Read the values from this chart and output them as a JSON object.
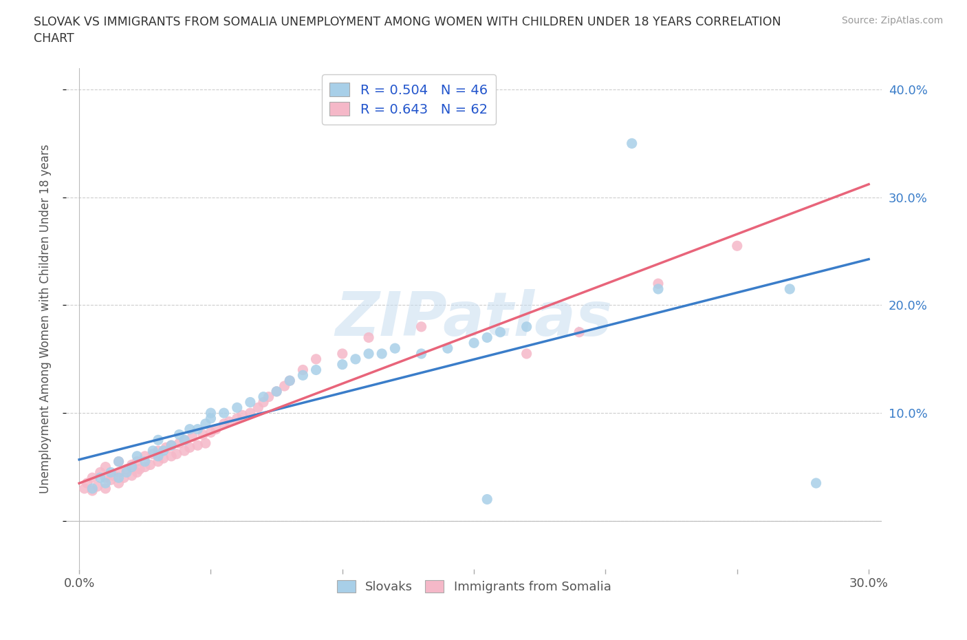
{
  "title": "SLOVAK VS IMMIGRANTS FROM SOMALIA UNEMPLOYMENT AMONG WOMEN WITH CHILDREN UNDER 18 YEARS CORRELATION\nCHART",
  "source": "Source: ZipAtlas.com",
  "ylabel": "Unemployment Among Women with Children Under 18 years",
  "xlim": [
    -0.005,
    0.305
  ],
  "ylim": [
    -0.045,
    0.42
  ],
  "plot_xlim": [
    0.0,
    0.3
  ],
  "plot_ylim": [
    0.0,
    0.4
  ],
  "xticks": [
    0.0,
    0.05,
    0.1,
    0.15,
    0.2,
    0.25,
    0.3
  ],
  "xtick_labels": [
    "0.0%",
    "",
    "",
    "",
    "",
    "",
    "30.0%"
  ],
  "yticks": [
    0.0,
    0.1,
    0.2,
    0.3,
    0.4
  ],
  "ytick_labels_right": [
    "",
    "10.0%",
    "20.0%",
    "30.0%",
    "40.0%"
  ],
  "watermark": "ZIPatlas",
  "slovak_color": "#a8cfe8",
  "somalia_color": "#f5b8c8",
  "slovak_line_color": "#3a7dc9",
  "somalia_line_color": "#e8647a",
  "slovak_R": 0.504,
  "slovak_N": 46,
  "somalia_R": 0.643,
  "somalia_N": 62,
  "slovak_scatter_x": [
    0.005,
    0.008,
    0.01,
    0.012,
    0.015,
    0.015,
    0.018,
    0.02,
    0.022,
    0.025,
    0.028,
    0.03,
    0.03,
    0.032,
    0.035,
    0.038,
    0.04,
    0.042,
    0.045,
    0.048,
    0.05,
    0.05,
    0.055,
    0.06,
    0.065,
    0.07,
    0.075,
    0.08,
    0.085,
    0.09,
    0.1,
    0.105,
    0.11,
    0.115,
    0.12,
    0.13,
    0.14,
    0.15,
    0.155,
    0.16,
    0.17,
    0.21,
    0.22,
    0.155,
    0.27,
    0.28
  ],
  "slovak_scatter_y": [
    0.03,
    0.04,
    0.035,
    0.045,
    0.04,
    0.055,
    0.045,
    0.05,
    0.06,
    0.055,
    0.065,
    0.06,
    0.075,
    0.065,
    0.07,
    0.08,
    0.075,
    0.085,
    0.085,
    0.09,
    0.095,
    0.1,
    0.1,
    0.105,
    0.11,
    0.115,
    0.12,
    0.13,
    0.135,
    0.14,
    0.145,
    0.15,
    0.155,
    0.155,
    0.16,
    0.155,
    0.16,
    0.165,
    0.17,
    0.175,
    0.18,
    0.35,
    0.215,
    0.02,
    0.215,
    0.035
  ],
  "somalia_scatter_x": [
    0.002,
    0.003,
    0.005,
    0.005,
    0.007,
    0.008,
    0.01,
    0.01,
    0.01,
    0.012,
    0.013,
    0.015,
    0.015,
    0.015,
    0.017,
    0.018,
    0.02,
    0.02,
    0.022,
    0.022,
    0.023,
    0.025,
    0.025,
    0.027,
    0.028,
    0.03,
    0.03,
    0.032,
    0.033,
    0.035,
    0.035,
    0.037,
    0.038,
    0.04,
    0.04,
    0.042,
    0.043,
    0.045,
    0.047,
    0.048,
    0.05,
    0.052,
    0.055,
    0.057,
    0.06,
    0.062,
    0.065,
    0.068,
    0.07,
    0.072,
    0.075,
    0.078,
    0.08,
    0.085,
    0.09,
    0.1,
    0.11,
    0.13,
    0.17,
    0.19,
    0.22,
    0.25
  ],
  "somalia_scatter_y": [
    0.03,
    0.035,
    0.028,
    0.04,
    0.032,
    0.045,
    0.03,
    0.04,
    0.05,
    0.038,
    0.042,
    0.035,
    0.045,
    0.055,
    0.04,
    0.048,
    0.042,
    0.052,
    0.045,
    0.055,
    0.048,
    0.05,
    0.06,
    0.052,
    0.062,
    0.055,
    0.065,
    0.058,
    0.068,
    0.06,
    0.07,
    0.062,
    0.072,
    0.065,
    0.075,
    0.068,
    0.078,
    0.07,
    0.08,
    0.072,
    0.082,
    0.085,
    0.09,
    0.092,
    0.095,
    0.098,
    0.1,
    0.105,
    0.11,
    0.115,
    0.12,
    0.125,
    0.13,
    0.14,
    0.15,
    0.155,
    0.17,
    0.18,
    0.155,
    0.175,
    0.22,
    0.255
  ],
  "background_color": "#ffffff",
  "grid_color": "#cccccc"
}
